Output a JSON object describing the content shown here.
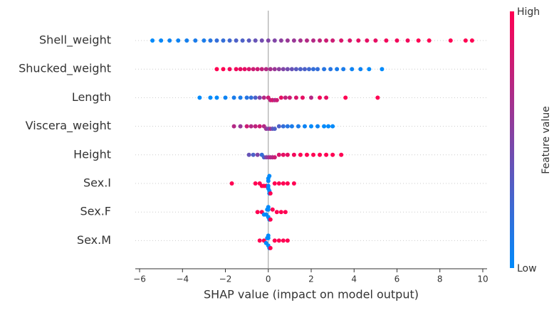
{
  "chart_data": {
    "type": "beeswarm",
    "x_label": "SHAP value (impact on model output)",
    "xlim": [
      -6.2,
      10.2
    ],
    "xticks": [
      {
        "value": -6,
        "label": "−6"
      },
      {
        "value": -4,
        "label": "−4"
      },
      {
        "value": -2,
        "label": "−2"
      },
      0,
      2,
      4,
      6,
      8,
      10
    ],
    "colorbar": {
      "label": "Feature value",
      "high_label": "High",
      "low_label": "Low",
      "colors": [
        "#008afb",
        "#ff0052"
      ]
    },
    "series": [
      {
        "name": "Shell_weight",
        "values": [
          -5.4,
          -5.0,
          -4.6,
          -4.2,
          -3.8,
          -3.4,
          -3.0,
          -2.7,
          -2.4,
          -2.1,
          -1.8,
          -1.5,
          -1.2,
          -0.9,
          -0.6,
          -0.3,
          0,
          0.3,
          0.6,
          0.9,
          1.2,
          1.5,
          1.8,
          2.1,
          2.4,
          2.7,
          3.0,
          3.4,
          3.8,
          4.2,
          4.6,
          5.0,
          5.5,
          6.0,
          6.5,
          7.0,
          7.5,
          8.5,
          9.2,
          9.5
        ],
        "feature_values": [
          0.0,
          0.02,
          0.05,
          0.05,
          0.08,
          0.1,
          0.1,
          0.15,
          0.2,
          0.2,
          0.25,
          0.3,
          0.3,
          0.35,
          0.4,
          0.45,
          0.5,
          0.5,
          0.55,
          0.6,
          0.6,
          0.65,
          0.7,
          0.7,
          0.75,
          0.8,
          0.8,
          0.85,
          0.85,
          0.9,
          0.9,
          0.9,
          0.95,
          0.95,
          0.95,
          1,
          1,
          1,
          1,
          1
        ]
      },
      {
        "name": "Shucked_weight",
        "values": [
          -2.4,
          -2.1,
          -1.8,
          -1.5,
          -1.3,
          -1.1,
          -0.9,
          -0.7,
          -0.5,
          -0.3,
          -0.1,
          0.1,
          0.3,
          0.5,
          0.7,
          0.9,
          1.1,
          1.3,
          1.5,
          1.7,
          1.9,
          2.1,
          2.3,
          2.6,
          2.9,
          3.2,
          3.5,
          3.9,
          4.3,
          4.7,
          5.3
        ],
        "feature_values": [
          1,
          1,
          0.95,
          0.95,
          0.9,
          0.9,
          0.85,
          0.8,
          0.8,
          0.75,
          0.7,
          0.65,
          0.6,
          0.55,
          0.5,
          0.45,
          0.4,
          0.35,
          0.3,
          0.3,
          0.25,
          0.2,
          0.2,
          0.15,
          0.15,
          0.1,
          0.1,
          0.05,
          0.05,
          0.0,
          0.0
        ]
      },
      {
        "name": "Length",
        "values": [
          -3.2,
          -2.7,
          -2.4,
          -2.0,
          -1.6,
          -1.3,
          -1.0,
          -0.8,
          -0.6,
          -0.4,
          -0.2,
          0,
          0.1,
          0.2,
          0.3,
          0.4,
          0.6,
          0.8,
          1.0,
          1.3,
          1.6,
          2.0,
          2.4,
          2.7,
          3.6,
          5.1
        ],
        "feature_values": [
          0,
          0,
          0,
          0.05,
          0.1,
          0.1,
          0.15,
          0.2,
          0.3,
          0.5,
          0.7,
          0.8,
          0.75,
          0.85,
          0.7,
          0.8,
          0.9,
          0.75,
          0.8,
          0.85,
          0.9,
          0.7,
          0.95,
          0.9,
          1,
          1
        ]
      },
      {
        "name": "Viscera_weight",
        "values": [
          -1.6,
          -1.3,
          -1.0,
          -0.8,
          -0.6,
          -0.4,
          -0.2,
          -0.1,
          0,
          0.1,
          0.2,
          0.3,
          0.5,
          0.7,
          0.9,
          1.1,
          1.4,
          1.7,
          2.0,
          2.3,
          2.6,
          2.8,
          3.0
        ],
        "feature_values": [
          0.7,
          0.6,
          0.8,
          0.7,
          0.75,
          0.8,
          0.7,
          0.6,
          0.5,
          0.65,
          0.4,
          0.3,
          0.3,
          0.2,
          0.15,
          0.1,
          0.1,
          0.05,
          0.0,
          0.05,
          0.0,
          0.0,
          0.0
        ]
      },
      {
        "name": "Height",
        "values": [
          -0.9,
          -0.7,
          -0.5,
          -0.3,
          -0.2,
          -0.1,
          0,
          0.1,
          0.2,
          0.3,
          0.5,
          0.7,
          0.9,
          1.2,
          1.5,
          1.8,
          2.1,
          2.4,
          2.7,
          3.0,
          3.4
        ],
        "feature_values": [
          0.4,
          0.3,
          0.5,
          0.2,
          0.3,
          0.5,
          0.6,
          0.7,
          0.7,
          0.8,
          0.85,
          0.9,
          0.9,
          0.95,
          1,
          1,
          1,
          1,
          1,
          1,
          1
        ]
      },
      {
        "name": "Sex.I",
        "values": [
          -1.7,
          -0.6,
          -0.4,
          -0.3,
          -0.2,
          -0.1,
          0,
          0,
          0,
          0,
          0.05,
          0.05,
          0.05,
          0.1,
          0.3,
          0.5,
          0.7,
          0.9,
          1.2
        ],
        "feature_values": [
          1,
          1,
          1,
          1,
          1,
          1,
          0,
          0,
          0,
          0,
          0,
          0,
          0,
          1,
          1,
          1,
          1,
          1,
          1
        ]
      },
      {
        "name": "Sex.F",
        "values": [
          -0.5,
          -0.3,
          -0.2,
          -0.1,
          -0.05,
          0,
          0,
          0,
          0.05,
          0.1,
          0.2,
          0.4,
          0.6,
          0.8
        ],
        "feature_values": [
          1,
          1,
          0,
          0,
          0,
          0,
          0,
          0,
          0,
          1,
          1,
          1,
          1,
          1
        ]
      },
      {
        "name": "Sex.M",
        "values": [
          -0.4,
          -0.2,
          -0.1,
          -0.05,
          0,
          0,
          0,
          0.05,
          0.1,
          0.3,
          0.5,
          0.7,
          0.9
        ],
        "feature_values": [
          1,
          1,
          0,
          0,
          0,
          0,
          0,
          0,
          1,
          1,
          1,
          1,
          1
        ]
      }
    ]
  }
}
